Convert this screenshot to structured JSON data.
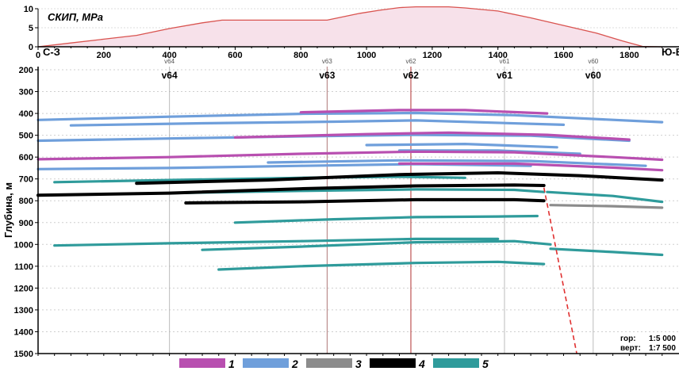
{
  "chart_data": [
    {
      "type": "area",
      "title": "СКИП, МРа",
      "x": [
        0,
        100,
        200,
        300,
        400,
        500,
        560,
        700,
        880,
        980,
        1040,
        1100,
        1150,
        1250,
        1300,
        1400,
        1500,
        1600,
        1700,
        1780,
        1840,
        1900
      ],
      "y": [
        0,
        1,
        2,
        3,
        4.8,
        6.3,
        7,
        7,
        7,
        8.8,
        9.6,
        10.3,
        10.5,
        10.5,
        10.2,
        9.4,
        7.6,
        5.6,
        3.6,
        1.5,
        0.1,
        0
      ],
      "xlim": [
        0,
        1900
      ],
      "ylim": [
        0,
        10
      ],
      "yticks": [
        "0",
        "5",
        "10"
      ],
      "xticks": [
        "0",
        "200",
        "400",
        "600",
        "800",
        "1000",
        "1200",
        "1400",
        "1600",
        "1800"
      ],
      "line_color": "#d9534f",
      "fill_color": "#f7e1ea"
    },
    {
      "type": "line",
      "ylabel": "Глубина, м",
      "xlim": [
        0,
        1900
      ],
      "ylim": [
        1500,
        200
      ],
      "yticks": [
        "200",
        "300",
        "400",
        "500",
        "600",
        "700",
        "800",
        "900",
        "1000",
        "1100",
        "1200",
        "1300",
        "1400",
        "1500"
      ],
      "direction_labels": [
        "С-З",
        "Ю-В"
      ],
      "wells": [
        {
          "name": "v64",
          "x": 400,
          "color": "#bbbbbb"
        },
        {
          "name": "v63",
          "x": 880,
          "color": "#b07a7a"
        },
        {
          "name": "v62",
          "x": 1135,
          "color": "#b03030"
        },
        {
          "name": "v61",
          "x": 1420,
          "color": "#bbbbbb"
        },
        {
          "name": "v60",
          "x": 1690,
          "color": "#bbbbbb"
        }
      ],
      "fault": {
        "x": [
          1540,
          1640
        ],
        "depth": [
          740,
          1500
        ],
        "color": "#e03030"
      },
      "series": [
        {
          "type": 2,
          "x": [
            0,
            400,
            800,
            1150,
            1450,
            1900
          ],
          "depth": [
            430,
            415,
            402,
            398,
            408,
            440
          ]
        },
        {
          "type": 1,
          "x": [
            800,
            1100,
            1300,
            1550
          ],
          "depth": [
            395,
            385,
            385,
            400
          ]
        },
        {
          "type": 2,
          "x": [
            100,
            500,
            900,
            1150,
            1600
          ],
          "depth": [
            455,
            445,
            438,
            432,
            452
          ]
        },
        {
          "type": 2,
          "x": [
            0,
            400,
            800,
            1150,
            1500,
            1800
          ],
          "depth": [
            525,
            515,
            505,
            498,
            502,
            525
          ]
        },
        {
          "type": 1,
          "x": [
            600,
            1000,
            1250,
            1550,
            1800
          ],
          "depth": [
            510,
            495,
            488,
            498,
            520
          ]
        },
        {
          "type": 2,
          "x": [
            1000,
            1300,
            1580
          ],
          "depth": [
            545,
            540,
            555
          ]
        },
        {
          "type": 2,
          "x": [
            1100,
            1400,
            1650
          ],
          "depth": [
            570,
            570,
            585
          ]
        },
        {
          "type": 1,
          "x": [
            0,
            400,
            800,
            1150,
            1450,
            1750,
            1900
          ],
          "depth": [
            610,
            600,
            585,
            575,
            578,
            600,
            612
          ]
        },
        {
          "type": 2,
          "x": [
            700,
            1100,
            1500,
            1850
          ],
          "depth": [
            625,
            615,
            618,
            640
          ]
        },
        {
          "type": 2,
          "x": [
            0,
            400,
            800,
            1150,
            1500
          ],
          "depth": [
            655,
            650,
            640,
            632,
            640
          ]
        },
        {
          "type": 1,
          "x": [
            1100,
            1450,
            1750,
            1900
          ],
          "depth": [
            630,
            630,
            648,
            660
          ]
        },
        {
          "type": 5,
          "x": [
            50,
            400,
            800,
            1100,
            1300
          ],
          "depth": [
            715,
            705,
            695,
            690,
            695
          ]
        },
        {
          "type": 4,
          "x": [
            300,
            700,
            1100,
            1400,
            1650,
            1900
          ],
          "depth": [
            720,
            705,
            680,
            672,
            685,
            705
          ]
        },
        {
          "type": 5,
          "x": [
            0,
            400,
            800,
            1150,
            1450,
            1540
          ],
          "depth": [
            775,
            765,
            755,
            748,
            750,
            760
          ]
        },
        {
          "type": 4,
          "x": [
            0,
            400,
            800,
            1150,
            1450,
            1540
          ],
          "depth": [
            775,
            765,
            745,
            732,
            728,
            730
          ]
        },
        {
          "type": 4,
          "x": [
            450,
            800,
            1150,
            1450,
            1540
          ],
          "depth": [
            810,
            805,
            795,
            795,
            800
          ]
        },
        {
          "type": 5,
          "x": [
            1550,
            1750,
            1900
          ],
          "depth": [
            760,
            778,
            805
          ]
        },
        {
          "type": 3,
          "x": [
            1560,
            1750,
            1900
          ],
          "depth": [
            820,
            825,
            832
          ]
        },
        {
          "type": 5,
          "x": [
            600,
            900,
            1150,
            1400,
            1520
          ],
          "depth": [
            900,
            885,
            875,
            872,
            870
          ]
        },
        {
          "type": 5,
          "x": [
            50,
            400,
            800,
            1150,
            1400
          ],
          "depth": [
            1005,
            995,
            985,
            975,
            975
          ]
        },
        {
          "type": 5,
          "x": [
            500,
            800,
            1150,
            1450,
            1560
          ],
          "depth": [
            1025,
            1010,
            990,
            985,
            1000
          ]
        },
        {
          "type": 5,
          "x": [
            1560,
            1750,
            1900
          ],
          "depth": [
            1020,
            1035,
            1048
          ]
        },
        {
          "type": 5,
          "x": [
            550,
            800,
            1150,
            1400,
            1540
          ],
          "depth": [
            1115,
            1100,
            1085,
            1080,
            1090
          ]
        }
      ]
    }
  ],
  "legend": [
    {
      "label": "1",
      "color": "#b84fb0"
    },
    {
      "label": "2",
      "color": "#6f9fdb"
    },
    {
      "label": "3",
      "color": "#8c8c8c"
    },
    {
      "label": "4",
      "color": "#000000"
    },
    {
      "label": "5",
      "color": "#2f9b9b"
    }
  ],
  "scale": {
    "line1_label": "гор:",
    "line1_value": "1:5 000",
    "line2_label": "верт:",
    "line2_value": "1:7 500"
  }
}
